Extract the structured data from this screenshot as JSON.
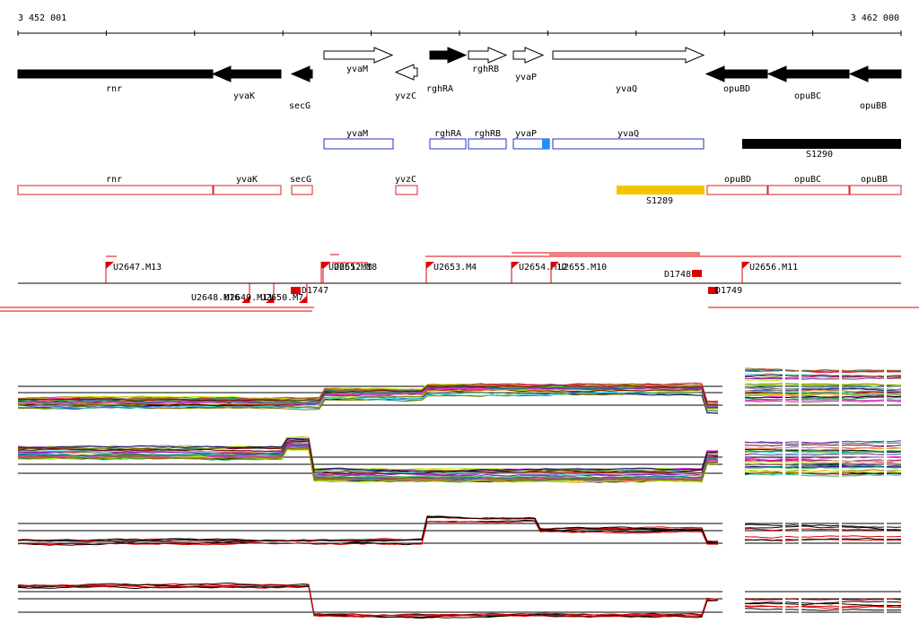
{
  "ruler": {
    "start": "3 452 001",
    "end": "3 462 000"
  },
  "genes": [
    "rnr",
    "yvaK",
    "secG",
    "yvaM",
    "yvzC",
    "rghRA",
    "rghRB",
    "yvaP",
    "yvaQ",
    "opuBD",
    "opuBC",
    "opuBB"
  ],
  "transcripts": [
    "yvaM",
    "rghRA",
    "rghRB",
    "yvaP",
    "yvaQ",
    "S1290"
  ],
  "annotations": [
    "rnr",
    "yvaK",
    "secG",
    "yvzC",
    "opuBD",
    "opuBC",
    "opuBB",
    "S1289"
  ],
  "markers": [
    "U2647.M13",
    "U2648.M16",
    "U2649.M11",
    "U2650.M7",
    "D1747",
    "U2651.M1",
    "U2652.M8",
    "U2653.M4",
    "U2654.M12",
    "U2655.M10",
    "D1748",
    "D1749",
    "U2656.M11"
  ]
}
